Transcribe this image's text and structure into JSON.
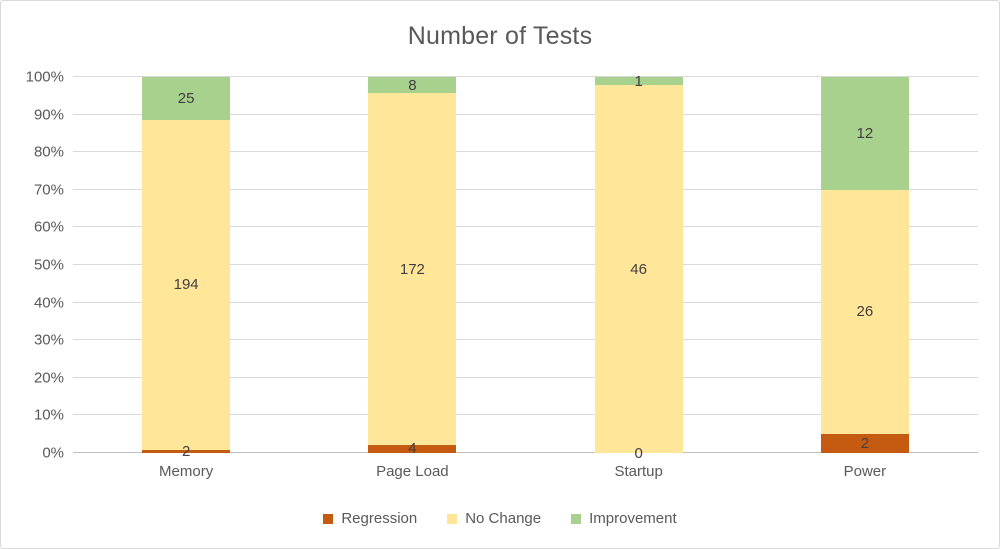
{
  "chart_data": {
    "type": "bar",
    "variant": "100-percent-stacked-column",
    "title": "Number of Tests",
    "categories": [
      "Memory",
      "Page Load",
      "Startup",
      "Power"
    ],
    "series": [
      {
        "name": "Regression",
        "color": "#C55A11",
        "values": [
          2,
          4,
          0,
          2
        ]
      },
      {
        "name": "No Change",
        "color": "#FFE699",
        "values": [
          194,
          172,
          46,
          26
        ]
      },
      {
        "name": "Improvement",
        "color": "#A9D18E",
        "values": [
          25,
          8,
          1,
          12
        ]
      }
    ],
    "y_ticks": [
      "0%",
      "10%",
      "20%",
      "30%",
      "40%",
      "50%",
      "60%",
      "70%",
      "80%",
      "90%",
      "100%"
    ],
    "ylim": [
      0,
      100
    ],
    "grid": true,
    "data_labels": true,
    "legend_position": "bottom"
  },
  "colors": {
    "title_text": "#595959",
    "axis_text": "#595959",
    "data_label_text": "#404040",
    "gridline": "#D9D9D9",
    "axis_line": "#BFBFBF",
    "chart_border": "#D9D9D9",
    "background": "#FFFFFF"
  }
}
